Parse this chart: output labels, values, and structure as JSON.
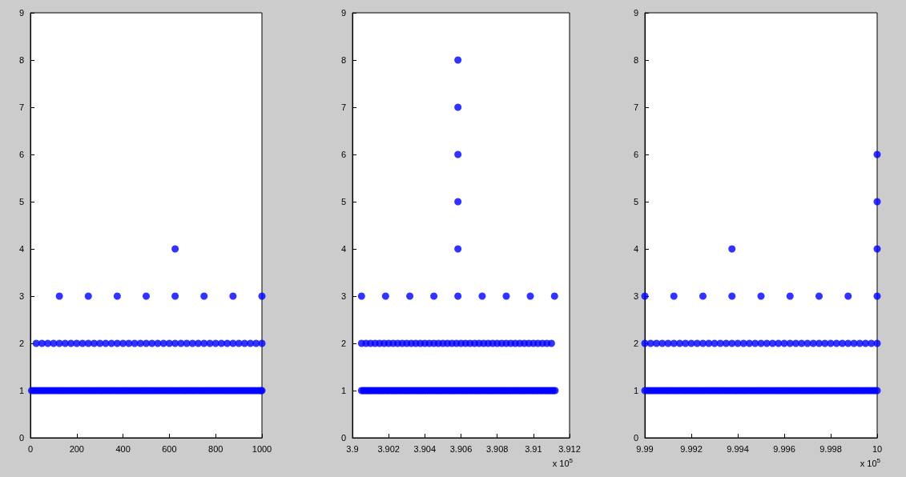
{
  "chart_data": [
    {
      "type": "scatter",
      "marker": "circle",
      "xlim": [
        0,
        1000
      ],
      "xticks": [
        0,
        200,
        400,
        600,
        800,
        1000
      ],
      "ylim": [
        0,
        9
      ],
      "yticks": [
        0,
        1,
        2,
        3,
        4,
        5,
        6,
        7,
        8,
        9
      ],
      "series": [
        {
          "color": "#0000ff",
          "x": [
            5,
            15,
            25,
            35,
            45,
            55,
            65,
            75,
            85,
            95,
            105,
            115,
            125,
            135,
            145,
            155,
            165,
            175,
            185,
            195,
            205,
            215,
            225,
            235,
            245,
            255,
            265,
            275,
            285,
            295,
            305,
            315,
            325,
            335,
            345,
            355,
            365,
            375,
            385,
            395,
            405,
            415,
            425,
            435,
            445,
            455,
            465,
            475,
            485,
            495,
            505,
            515,
            525,
            535,
            545,
            555,
            565,
            575,
            585,
            595,
            605,
            615,
            625,
            635,
            645,
            655,
            665,
            675,
            685,
            695,
            705,
            715,
            725,
            735,
            745,
            755,
            765,
            775,
            785,
            795,
            805,
            815,
            825,
            835,
            845,
            855,
            865,
            875,
            885,
            895,
            905,
            915,
            925,
            935,
            945,
            955,
            965,
            975,
            985,
            995,
            1000
          ],
          "values": [
            1,
            1,
            1,
            1,
            1,
            1,
            1,
            1,
            1,
            1,
            1,
            1,
            1,
            1,
            1,
            1,
            1,
            1,
            1,
            1,
            1,
            1,
            1,
            1,
            1,
            1,
            1,
            1,
            1,
            1,
            1,
            1,
            1,
            1,
            1,
            1,
            1,
            1,
            1,
            1,
            1,
            1,
            1,
            1,
            1,
            1,
            1,
            1,
            1,
            1,
            1,
            1,
            1,
            1,
            1,
            1,
            1,
            1,
            1,
            1,
            1,
            1,
            1,
            1,
            1,
            1,
            1,
            1,
            1,
            1,
            1,
            1,
            1,
            1,
            1,
            1,
            1,
            1,
            1,
            1,
            1,
            1,
            1,
            1,
            1,
            1,
            1,
            1,
            1,
            1,
            1,
            1,
            1,
            1,
            1,
            1,
            1,
            1,
            1,
            1,
            1
          ]
        },
        {
          "color": "#0000ff",
          "x": [
            25,
            50,
            75,
            100,
            125,
            150,
            175,
            200,
            225,
            250,
            275,
            300,
            325,
            350,
            375,
            400,
            425,
            450,
            475,
            500,
            525,
            550,
            575,
            600,
            625,
            650,
            675,
            700,
            725,
            750,
            775,
            800,
            825,
            850,
            875,
            900,
            925,
            950,
            975,
            1000
          ],
          "values": [
            2,
            2,
            2,
            2,
            2,
            2,
            2,
            2,
            2,
            2,
            2,
            2,
            2,
            2,
            2,
            2,
            2,
            2,
            2,
            2,
            2,
            2,
            2,
            2,
            2,
            2,
            2,
            2,
            2,
            2,
            2,
            2,
            2,
            2,
            2,
            2,
            2,
            2,
            2,
            2
          ]
        },
        {
          "color": "#0000ff",
          "x": [
            125,
            250,
            375,
            500,
            625,
            750,
            875,
            1000
          ],
          "values": [
            3,
            3,
            3,
            3,
            3,
            3,
            3,
            3
          ]
        },
        {
          "color": "#0000ff",
          "x": [
            625
          ],
          "values": [
            4
          ]
        }
      ]
    },
    {
      "type": "scatter",
      "marker": "circle",
      "xlim": [
        3.9,
        3.912
      ],
      "xticks": [
        3.9,
        3.902,
        3.904,
        3.906,
        3.908,
        3.91,
        3.912
      ],
      "ylim": [
        0,
        9
      ],
      "yticks": [
        0,
        1,
        2,
        3,
        4,
        5,
        6,
        7,
        8,
        9
      ],
      "annotations": [
        "x 10$^{5}$"
      ],
      "series": [
        {
          "color": "#0000ff",
          "x": [
            3.9005,
            3.9006,
            3.9007,
            3.9008,
            3.9009,
            3.901,
            3.9011,
            3.9012,
            3.9013,
            3.9014,
            3.9015,
            3.9016,
            3.9017,
            3.9018,
            3.9019,
            3.902,
            3.9021,
            3.9022,
            3.9023,
            3.9024,
            3.9025,
            3.9026,
            3.9027,
            3.9028,
            3.9029,
            3.903,
            3.9031,
            3.9032,
            3.9033,
            3.9034,
            3.9035,
            3.9036,
            3.9037,
            3.9038,
            3.9039,
            3.904,
            3.9041,
            3.9042,
            3.9043,
            3.9044,
            3.9045,
            3.9046,
            3.9047,
            3.9048,
            3.9049,
            3.905,
            3.9051,
            3.9052,
            3.9053,
            3.9054,
            3.9055,
            3.9056,
            3.9057,
            3.9058,
            3.9059,
            3.906,
            3.9061,
            3.9062,
            3.9063,
            3.9064,
            3.9065,
            3.9066,
            3.9067,
            3.9068,
            3.9069,
            3.907,
            3.9071,
            3.9072,
            3.9073,
            3.9074,
            3.9075,
            3.9076,
            3.9077,
            3.9078,
            3.9079,
            3.908,
            3.9081,
            3.9082,
            3.9083,
            3.9084,
            3.9085,
            3.9086,
            3.9087,
            3.9088,
            3.9089,
            3.909,
            3.9091,
            3.9092,
            3.9093,
            3.9094,
            3.9095,
            3.9096,
            3.9097,
            3.9098,
            3.9099,
            3.91,
            3.9101,
            3.9102,
            3.9103,
            3.9104,
            3.9105,
            3.9106,
            3.9107,
            3.9108,
            3.9109,
            3.911,
            3.9111,
            3.9112
          ],
          "values": [
            1,
            1,
            1,
            1,
            1,
            1,
            1,
            1,
            1,
            1,
            1,
            1,
            1,
            1,
            1,
            1,
            1,
            1,
            1,
            1,
            1,
            1,
            1,
            1,
            1,
            1,
            1,
            1,
            1,
            1,
            1,
            1,
            1,
            1,
            1,
            1,
            1,
            1,
            1,
            1,
            1,
            1,
            1,
            1,
            1,
            1,
            1,
            1,
            1,
            1,
            1,
            1,
            1,
            1,
            1,
            1,
            1,
            1,
            1,
            1,
            1,
            1,
            1,
            1,
            1,
            1,
            1,
            1,
            1,
            1,
            1,
            1,
            1,
            1,
            1,
            1,
            1,
            1,
            1,
            1,
            1,
            1,
            1,
            1,
            1,
            1,
            1,
            1,
            1,
            1,
            1,
            1,
            1,
            1,
            1,
            1,
            1,
            1,
            1,
            1,
            1,
            1,
            1,
            1,
            1,
            1,
            1,
            1
          ]
        },
        {
          "color": "#0000ff",
          "x": [
            3.9005,
            3.90075,
            3.901,
            3.90125,
            3.9015,
            3.90175,
            3.902,
            3.90225,
            3.9025,
            3.90275,
            3.903,
            3.90325,
            3.9035,
            3.90375,
            3.904,
            3.90425,
            3.9045,
            3.90475,
            3.905,
            3.90525,
            3.9055,
            3.90575,
            3.906,
            3.90625,
            3.9065,
            3.90675,
            3.907,
            3.90725,
            3.9075,
            3.90775,
            3.908,
            3.90825,
            3.9085,
            3.90875,
            3.909,
            3.90925,
            3.9095,
            3.90975,
            3.91,
            3.91025,
            3.9105,
            3.91075,
            3.911
          ],
          "values": [
            2,
            2,
            2,
            2,
            2,
            2,
            2,
            2,
            2,
            2,
            2,
            2,
            2,
            2,
            2,
            2,
            2,
            2,
            2,
            2,
            2,
            2,
            2,
            2,
            2,
            2,
            2,
            2,
            2,
            2,
            2,
            2,
            2,
            2,
            2,
            2,
            2,
            2,
            2,
            2,
            2,
            2,
            2
          ]
        },
        {
          "color": "#0000ff",
          "x": [
            3.9005,
            3.90183,
            3.90317,
            3.9045,
            3.90583,
            3.90717,
            3.9085,
            3.90983,
            3.91117
          ],
          "values": [
            3,
            3,
            3,
            3,
            3,
            3,
            3,
            3,
            3
          ]
        },
        {
          "color": "#0000ff",
          "x": [
            3.90583,
            3.90583,
            3.90583,
            3.90583,
            3.90583
          ],
          "values": [
            4,
            5,
            6,
            7,
            8
          ]
        }
      ]
    },
    {
      "type": "scatter",
      "marker": "circle",
      "xlim": [
        9.99,
        10
      ],
      "xticks": [
        9.99,
        9.992,
        9.994,
        9.996,
        9.998,
        10
      ],
      "ylim": [
        0,
        9
      ],
      "yticks": [
        0,
        1,
        2,
        3,
        4,
        5,
        6,
        7,
        8,
        9
      ],
      "annotations": [
        "x 10$^{5}$"
      ],
      "series": [
        {
          "color": "#0000ff",
          "x": [
            9.99,
            9.9901,
            9.9902,
            9.9903,
            9.9904,
            9.9905,
            9.9906,
            9.9907,
            9.9908,
            9.9909,
            9.991,
            9.9911,
            9.9912,
            9.9913,
            9.9914,
            9.9915,
            9.9916,
            9.9917,
            9.9918,
            9.9919,
            9.992,
            9.9921,
            9.9922,
            9.9923,
            9.9924,
            9.9925,
            9.9926,
            9.9927,
            9.9928,
            9.9929,
            9.993,
            9.9931,
            9.9932,
            9.9933,
            9.9934,
            9.9935,
            9.9936,
            9.9937,
            9.9938,
            9.9939,
            9.994,
            9.9941,
            9.9942,
            9.9943,
            9.9944,
            9.9945,
            9.9946,
            9.9947,
            9.9948,
            9.9949,
            9.995,
            9.9951,
            9.9952,
            9.9953,
            9.9954,
            9.9955,
            9.9956,
            9.9957,
            9.9958,
            9.9959,
            9.996,
            9.9961,
            9.9962,
            9.9963,
            9.9964,
            9.9965,
            9.9966,
            9.9967,
            9.9968,
            9.9969,
            9.997,
            9.9971,
            9.9972,
            9.9973,
            9.9974,
            9.9975,
            9.9976,
            9.9977,
            9.9978,
            9.9979,
            9.998,
            9.9981,
            9.9982,
            9.9983,
            9.9984,
            9.9985,
            9.9986,
            9.9987,
            9.9988,
            9.9989,
            9.999,
            9.9991,
            9.9992,
            9.9993,
            9.9994,
            9.9995,
            9.9996,
            9.9997,
            9.9998,
            9.9999,
            10
          ],
          "values": [
            1,
            1,
            1,
            1,
            1,
            1,
            1,
            1,
            1,
            1,
            1,
            1,
            1,
            1,
            1,
            1,
            1,
            1,
            1,
            1,
            1,
            1,
            1,
            1,
            1,
            1,
            1,
            1,
            1,
            1,
            1,
            1,
            1,
            1,
            1,
            1,
            1,
            1,
            1,
            1,
            1,
            1,
            1,
            1,
            1,
            1,
            1,
            1,
            1,
            1,
            1,
            1,
            1,
            1,
            1,
            1,
            1,
            1,
            1,
            1,
            1,
            1,
            1,
            1,
            1,
            1,
            1,
            1,
            1,
            1,
            1,
            1,
            1,
            1,
            1,
            1,
            1,
            1,
            1,
            1,
            1,
            1,
            1,
            1,
            1,
            1,
            1,
            1,
            1,
            1,
            1,
            1,
            1,
            1,
            1,
            1,
            1,
            1,
            1,
            1,
            1
          ]
        },
        {
          "color": "#0000ff",
          "x": [
            9.99,
            9.99025,
            9.9905,
            9.99075,
            9.991,
            9.99125,
            9.9915,
            9.99175,
            9.992,
            9.99225,
            9.9925,
            9.99275,
            9.993,
            9.99325,
            9.9935,
            9.99375,
            9.994,
            9.99425,
            9.9945,
            9.99475,
            9.995,
            9.99525,
            9.9955,
            9.99575,
            9.996,
            9.99625,
            9.9965,
            9.99675,
            9.997,
            9.99725,
            9.9975,
            9.99775,
            9.998,
            9.99825,
            9.9985,
            9.99875,
            9.999,
            9.99925,
            9.9995,
            9.99975,
            10
          ],
          "values": [
            2,
            2,
            2,
            2,
            2,
            2,
            2,
            2,
            2,
            2,
            2,
            2,
            2,
            2,
            2,
            2,
            2,
            2,
            2,
            2,
            2,
            2,
            2,
            2,
            2,
            2,
            2,
            2,
            2,
            2,
            2,
            2,
            2,
            2,
            2,
            2,
            2,
            2,
            2,
            2,
            2
          ]
        },
        {
          "color": "#0000ff",
          "x": [
            9.99,
            9.99125,
            9.9925,
            9.99375,
            9.995,
            9.99625,
            9.9975,
            9.99875,
            10
          ],
          "values": [
            3,
            3,
            3,
            3,
            3,
            3,
            3,
            3,
            3
          ]
        },
        {
          "color": "#0000ff",
          "x": [
            9.99375,
            10,
            10,
            10
          ],
          "values": [
            4,
            4,
            5,
            6
          ]
        }
      ]
    }
  ]
}
